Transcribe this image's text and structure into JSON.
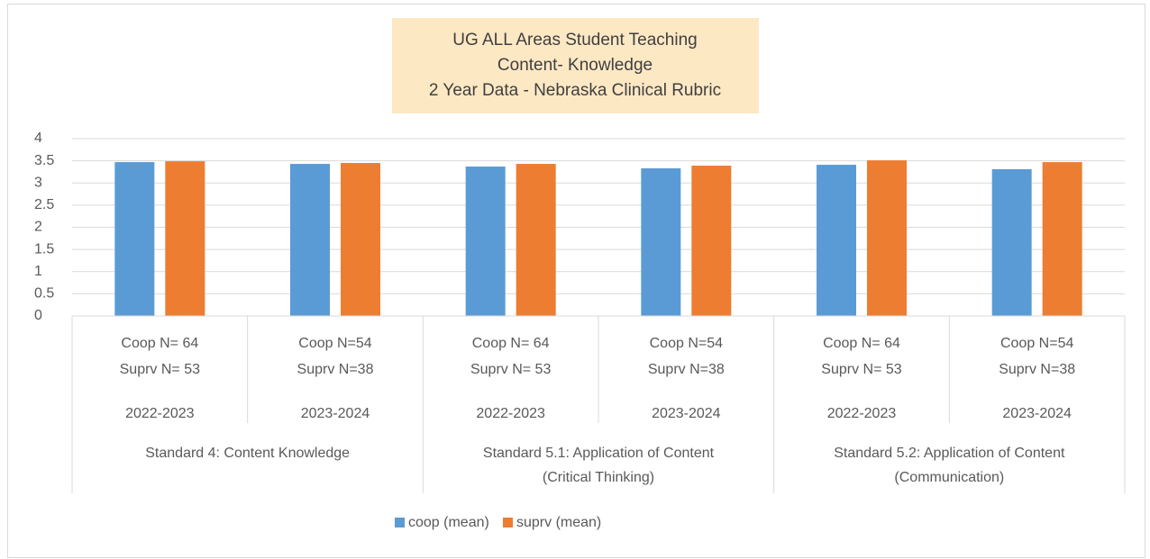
{
  "chart_data": {
    "type": "bar",
    "title": [
      "UG ALL Areas  Student Teaching",
      "Content- Knowledge",
      "2 Year Data - Nebraska Clinical Rubric"
    ],
    "groups": [
      {
        "lines": [
          "Standard 4: Content Knowledge"
        ],
        "categories": [
          {
            "lines": [
              "Coop N= 64",
              "Suprv N= 53"
            ],
            "year": "2022-2023"
          },
          {
            "lines": [
              "Coop N=54",
              "Suprv N=38"
            ],
            "year": "2023-2024"
          }
        ]
      },
      {
        "lines": [
          "Standard 5.1: Application of Content",
          "(Critical Thinking)"
        ],
        "categories": [
          {
            "lines": [
              "Coop N= 64",
              "Suprv N= 53"
            ],
            "year": "2022-2023"
          },
          {
            "lines": [
              "Coop N=54",
              "Suprv N=38"
            ],
            "year": "2023-2024"
          }
        ]
      },
      {
        "lines": [
          "Standard 5.2: Application of Content",
          "(Communication)"
        ],
        "categories": [
          {
            "lines": [
              "Coop N= 64",
              "Suprv N= 53"
            ],
            "year": "2022-2023"
          },
          {
            "lines": [
              "Coop N=54",
              "Suprv N=38"
            ],
            "year": "2023-2024"
          }
        ]
      }
    ],
    "series": [
      {
        "name": "coop (mean)",
        "color": "#5b9bd5",
        "values": [
          3.47,
          3.43,
          3.37,
          3.33,
          3.41,
          3.31
        ]
      },
      {
        "name": "suprv (mean)",
        "color": "#ed7d31",
        "values": [
          3.49,
          3.45,
          3.43,
          3.39,
          3.51,
          3.47
        ]
      }
    ],
    "ylim": [
      0,
      4
    ],
    "yticks": [
      0,
      0.5,
      1,
      1.5,
      2,
      2.5,
      3,
      3.5,
      4
    ],
    "grid": true,
    "legend": "bottom"
  }
}
